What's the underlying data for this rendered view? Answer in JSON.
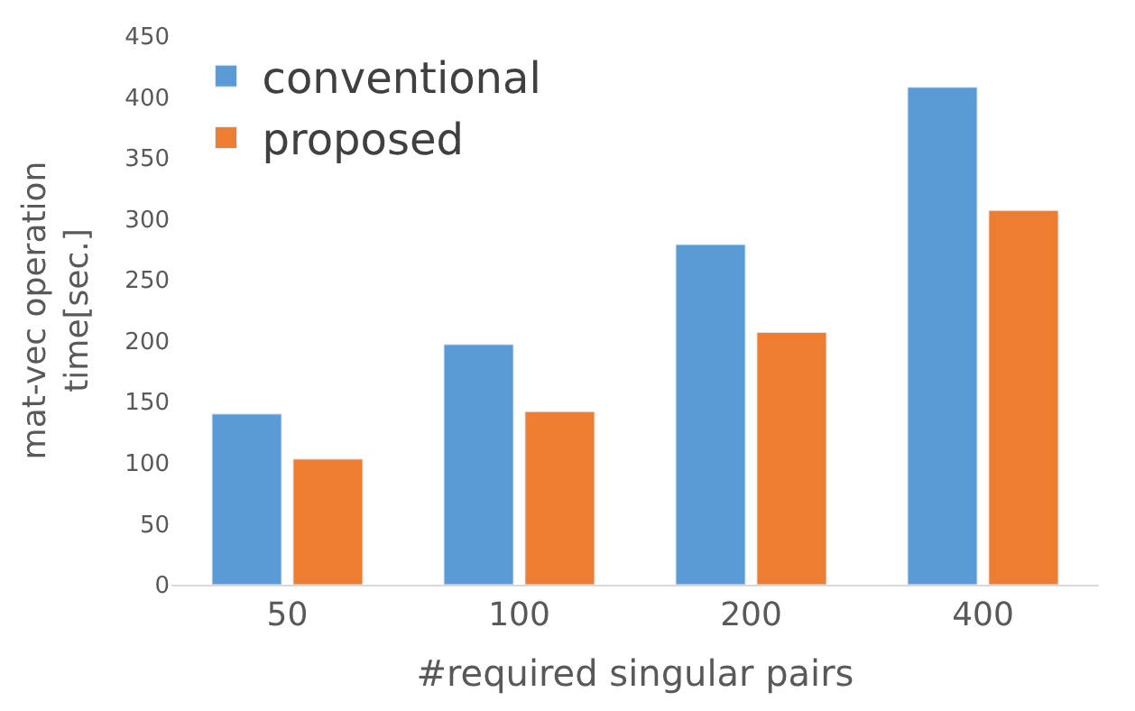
{
  "chart_data": {
    "type": "bar",
    "xlabel": "#required singular pairs",
    "ylabel": "mat-vec operation\ntime[sec.]",
    "categories": [
      "50",
      "100",
      "200",
      "400"
    ],
    "series": [
      {
        "name": "conventional",
        "color": "#5b9bd5",
        "values": [
          140,
          197,
          279,
          408
        ]
      },
      {
        "name": "proposed",
        "color": "#ed7d31",
        "values": [
          103,
          142,
          207,
          307
        ]
      }
    ],
    "ylim": [
      0,
      450
    ],
    "yticks": [
      0,
      50,
      100,
      150,
      200,
      250,
      300,
      350,
      400,
      450
    ],
    "grid": false,
    "legend": "top left"
  }
}
